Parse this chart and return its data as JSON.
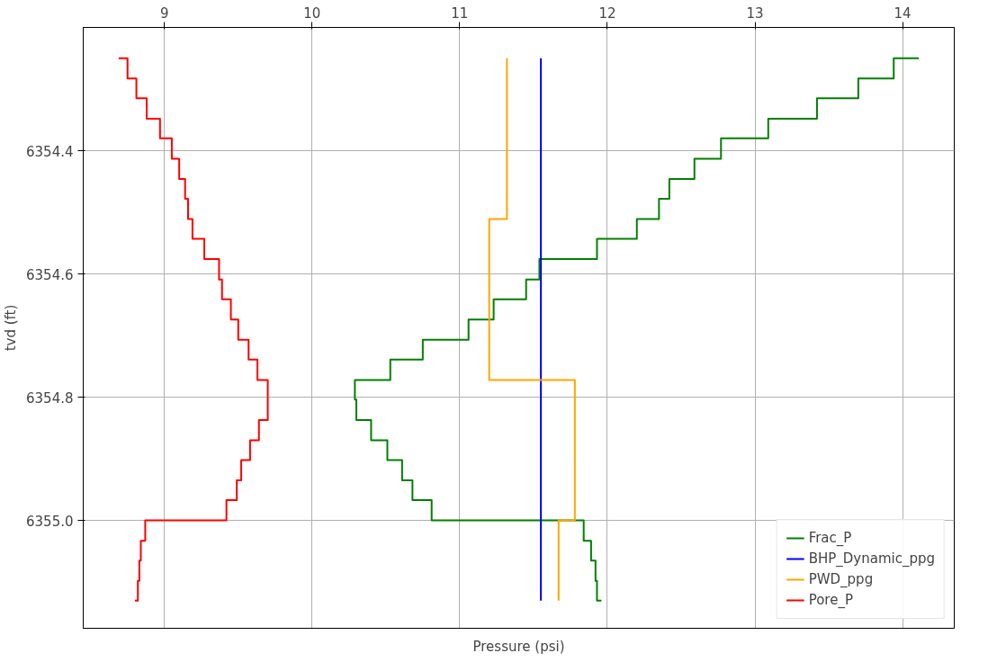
{
  "chart_data": {
    "type": "line",
    "xlabel": "Pressure (psi)",
    "ylabel": "tvd (ft)",
    "xlim": [
      8.45,
      14.35
    ],
    "xticks": [
      9,
      10,
      11,
      12,
      13,
      14
    ],
    "ylim": [
      6355.175,
      6354.2
    ],
    "yticks": [
      {
        "value": 6354.4,
        "label": "6354.4"
      },
      {
        "value": 6354.6,
        "label": "6354.6"
      },
      {
        "value": 6354.8,
        "label": "6354.8"
      },
      {
        "value": 6355.0,
        "label": "6355.0"
      }
    ],
    "grid": true,
    "legend": "bottom right",
    "series": [
      {
        "name": "Frac_P",
        "color": "#008000",
        "x": [
          14.11,
          13.94,
          13.94,
          13.7,
          13.7,
          13.42,
          13.42,
          13.09,
          13.09,
          12.77,
          12.77,
          12.59,
          12.59,
          12.42,
          12.42,
          12.35,
          12.35,
          12.2,
          12.2,
          11.93,
          11.93,
          11.54,
          11.54,
          11.45,
          11.45,
          11.23,
          11.23,
          11.06,
          11.06,
          10.75,
          10.75,
          10.53,
          10.53,
          10.29,
          10.29,
          10.3,
          10.3,
          10.4,
          10.4,
          10.51,
          10.51,
          10.61,
          10.61,
          10.68,
          10.68,
          10.81,
          10.81,
          11.84,
          11.84,
          11.89,
          11.89,
          11.92,
          11.92,
          11.93,
          11.93,
          11.96
        ],
        "values": [
          6354.25,
          6354.25,
          6354.283,
          6354.283,
          6354.315,
          6354.315,
          6354.348,
          6354.348,
          6354.38,
          6354.38,
          6354.413,
          6354.413,
          6354.446,
          6354.446,
          6354.478,
          6354.478,
          6354.511,
          6354.511,
          6354.543,
          6354.543,
          6354.576,
          6354.576,
          6354.609,
          6354.609,
          6354.641,
          6354.641,
          6354.674,
          6354.674,
          6354.707,
          6354.707,
          6354.739,
          6354.739,
          6354.772,
          6354.772,
          6354.804,
          6354.804,
          6354.837,
          6354.837,
          6354.87,
          6354.87,
          6354.902,
          6354.902,
          6354.935,
          6354.935,
          6354.967,
          6354.967,
          6355.0,
          6355.0,
          6355.033,
          6355.033,
          6355.065,
          6355.065,
          6355.098,
          6355.098,
          6355.13,
          6355.13
        ]
      },
      {
        "name": "BHP_Dynamic_ppg",
        "color": "#0000ff",
        "x": [
          11.55,
          11.55
        ],
        "values": [
          6354.25,
          6355.13
        ]
      },
      {
        "name": "PWD_ppg",
        "color": "#ffa500",
        "x": [
          11.32,
          11.32,
          11.2,
          11.2,
          11.78,
          11.78,
          11.67,
          11.67
        ],
        "values": [
          6354.25,
          6354.511,
          6354.511,
          6354.772,
          6354.772,
          6355.0,
          6355.0,
          6355.13
        ]
      },
      {
        "name": "Pore_P",
        "color": "#ff0000",
        "x": [
          8.69,
          8.75,
          8.75,
          8.81,
          8.81,
          8.88,
          8.88,
          8.97,
          8.97,
          9.05,
          9.05,
          9.1,
          9.1,
          9.14,
          9.14,
          9.16,
          9.16,
          9.19,
          9.19,
          9.27,
          9.27,
          9.37,
          9.37,
          9.39,
          9.39,
          9.45,
          9.45,
          9.5,
          9.5,
          9.57,
          9.57,
          9.63,
          9.63,
          9.7,
          9.7,
          9.64,
          9.64,
          9.58,
          9.58,
          9.52,
          9.52,
          9.49,
          9.49,
          9.42,
          9.42,
          8.87,
          8.87,
          8.84,
          8.84,
          8.83,
          8.83,
          8.82,
          8.82,
          8.8
        ],
        "values": [
          6354.25,
          6354.25,
          6354.283,
          6354.283,
          6354.315,
          6354.315,
          6354.348,
          6354.348,
          6354.38,
          6354.38,
          6354.413,
          6354.413,
          6354.446,
          6354.446,
          6354.478,
          6354.478,
          6354.511,
          6354.511,
          6354.543,
          6354.543,
          6354.576,
          6354.576,
          6354.609,
          6354.609,
          6354.641,
          6354.641,
          6354.674,
          6354.674,
          6354.707,
          6354.707,
          6354.739,
          6354.739,
          6354.772,
          6354.772,
          6354.837,
          6354.837,
          6354.87,
          6354.87,
          6354.902,
          6354.902,
          6354.935,
          6354.935,
          6354.967,
          6354.967,
          6355.0,
          6355.0,
          6355.033,
          6355.033,
          6355.065,
          6355.065,
          6355.098,
          6355.098,
          6355.13,
          6355.13
        ]
      }
    ]
  }
}
